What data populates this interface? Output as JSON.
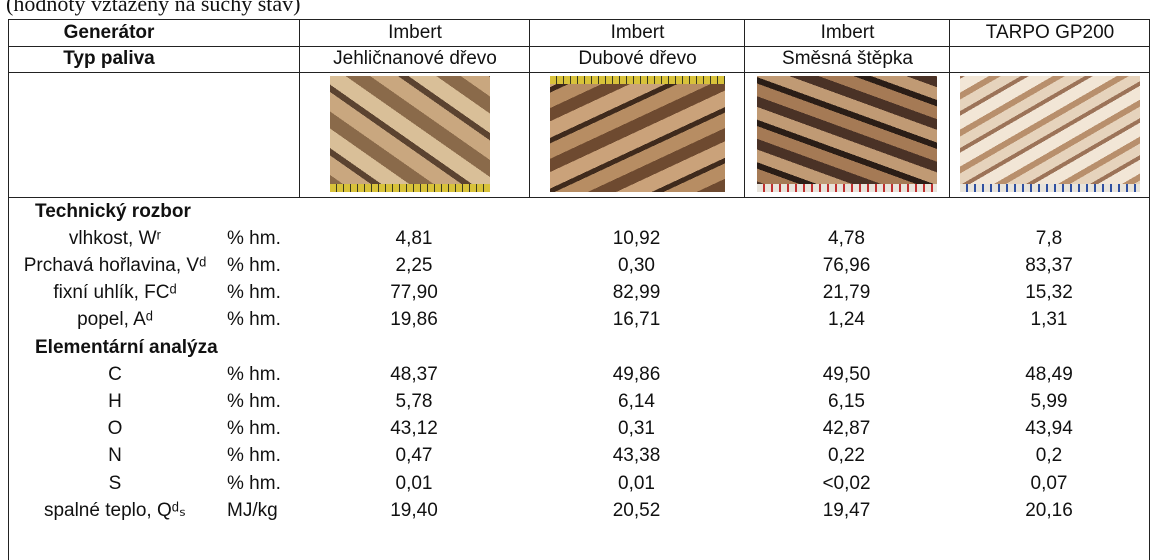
{
  "caption": "(hodnoty vztažený na suchý stav)",
  "table": {
    "header": [
      {
        "label": "Generátor",
        "cells": [
          "Imbert",
          "Imbert",
          "Imbert",
          "TARPO GP200"
        ]
      },
      {
        "label": "Typ paliva",
        "cells": [
          "Jehličnanové dřevo",
          "Dubové dřevo",
          "Směsná štěpka"
        ]
      }
    ],
    "rows": [
      {
        "section": "Technický rozbor"
      },
      {
        "label": "vlhkost, Wʳ",
        "unit": "% hm.",
        "values": [
          "4,81",
          "10,92",
          "4,78",
          "7,8"
        ]
      },
      {
        "label": "Prchavá hořlavina, Vᵈ",
        "unit": "% hm.",
        "values": [
          "2,25",
          "0,30",
          "76,96",
          "83,37"
        ]
      },
      {
        "label": "fixní uhlík, FCᵈ",
        "unit": "% hm.",
        "values": [
          "77,90",
          "82,99",
          "21,79",
          "15,32"
        ]
      },
      {
        "label": "popel, Aᵈ",
        "unit": "% hm.",
        "values": [
          "19,86",
          "16,71",
          "1,24",
          "1,31"
        ]
      },
      {
        "section": "Elementární analýza"
      },
      {
        "label": "C",
        "unit": "% hm.",
        "values": [
          "48,37",
          "49,86",
          "49,50",
          "48,49"
        ]
      },
      {
        "label": "H",
        "unit": "% hm.",
        "values": [
          "5,78",
          "6,14",
          "6,15",
          "5,99"
        ]
      },
      {
        "label": "O",
        "unit": "% hm.",
        "values": [
          "43,12",
          "0,31",
          "42,87",
          "43,94"
        ]
      },
      {
        "label": "N",
        "unit": "% hm.",
        "values": [
          "0,47",
          "43,38",
          "0,22",
          "0,2"
        ]
      },
      {
        "label": "S",
        "unit": "% hm.",
        "values": [
          "0,01",
          "0,01",
          "<0,02",
          "0,07"
        ]
      },
      {
        "label": "spalné teplo, Qᵈₛ",
        "unit": "MJ/kg",
        "values": [
          "19,40",
          "20,52",
          "19,47",
          "20,16"
        ]
      }
    ]
  }
}
